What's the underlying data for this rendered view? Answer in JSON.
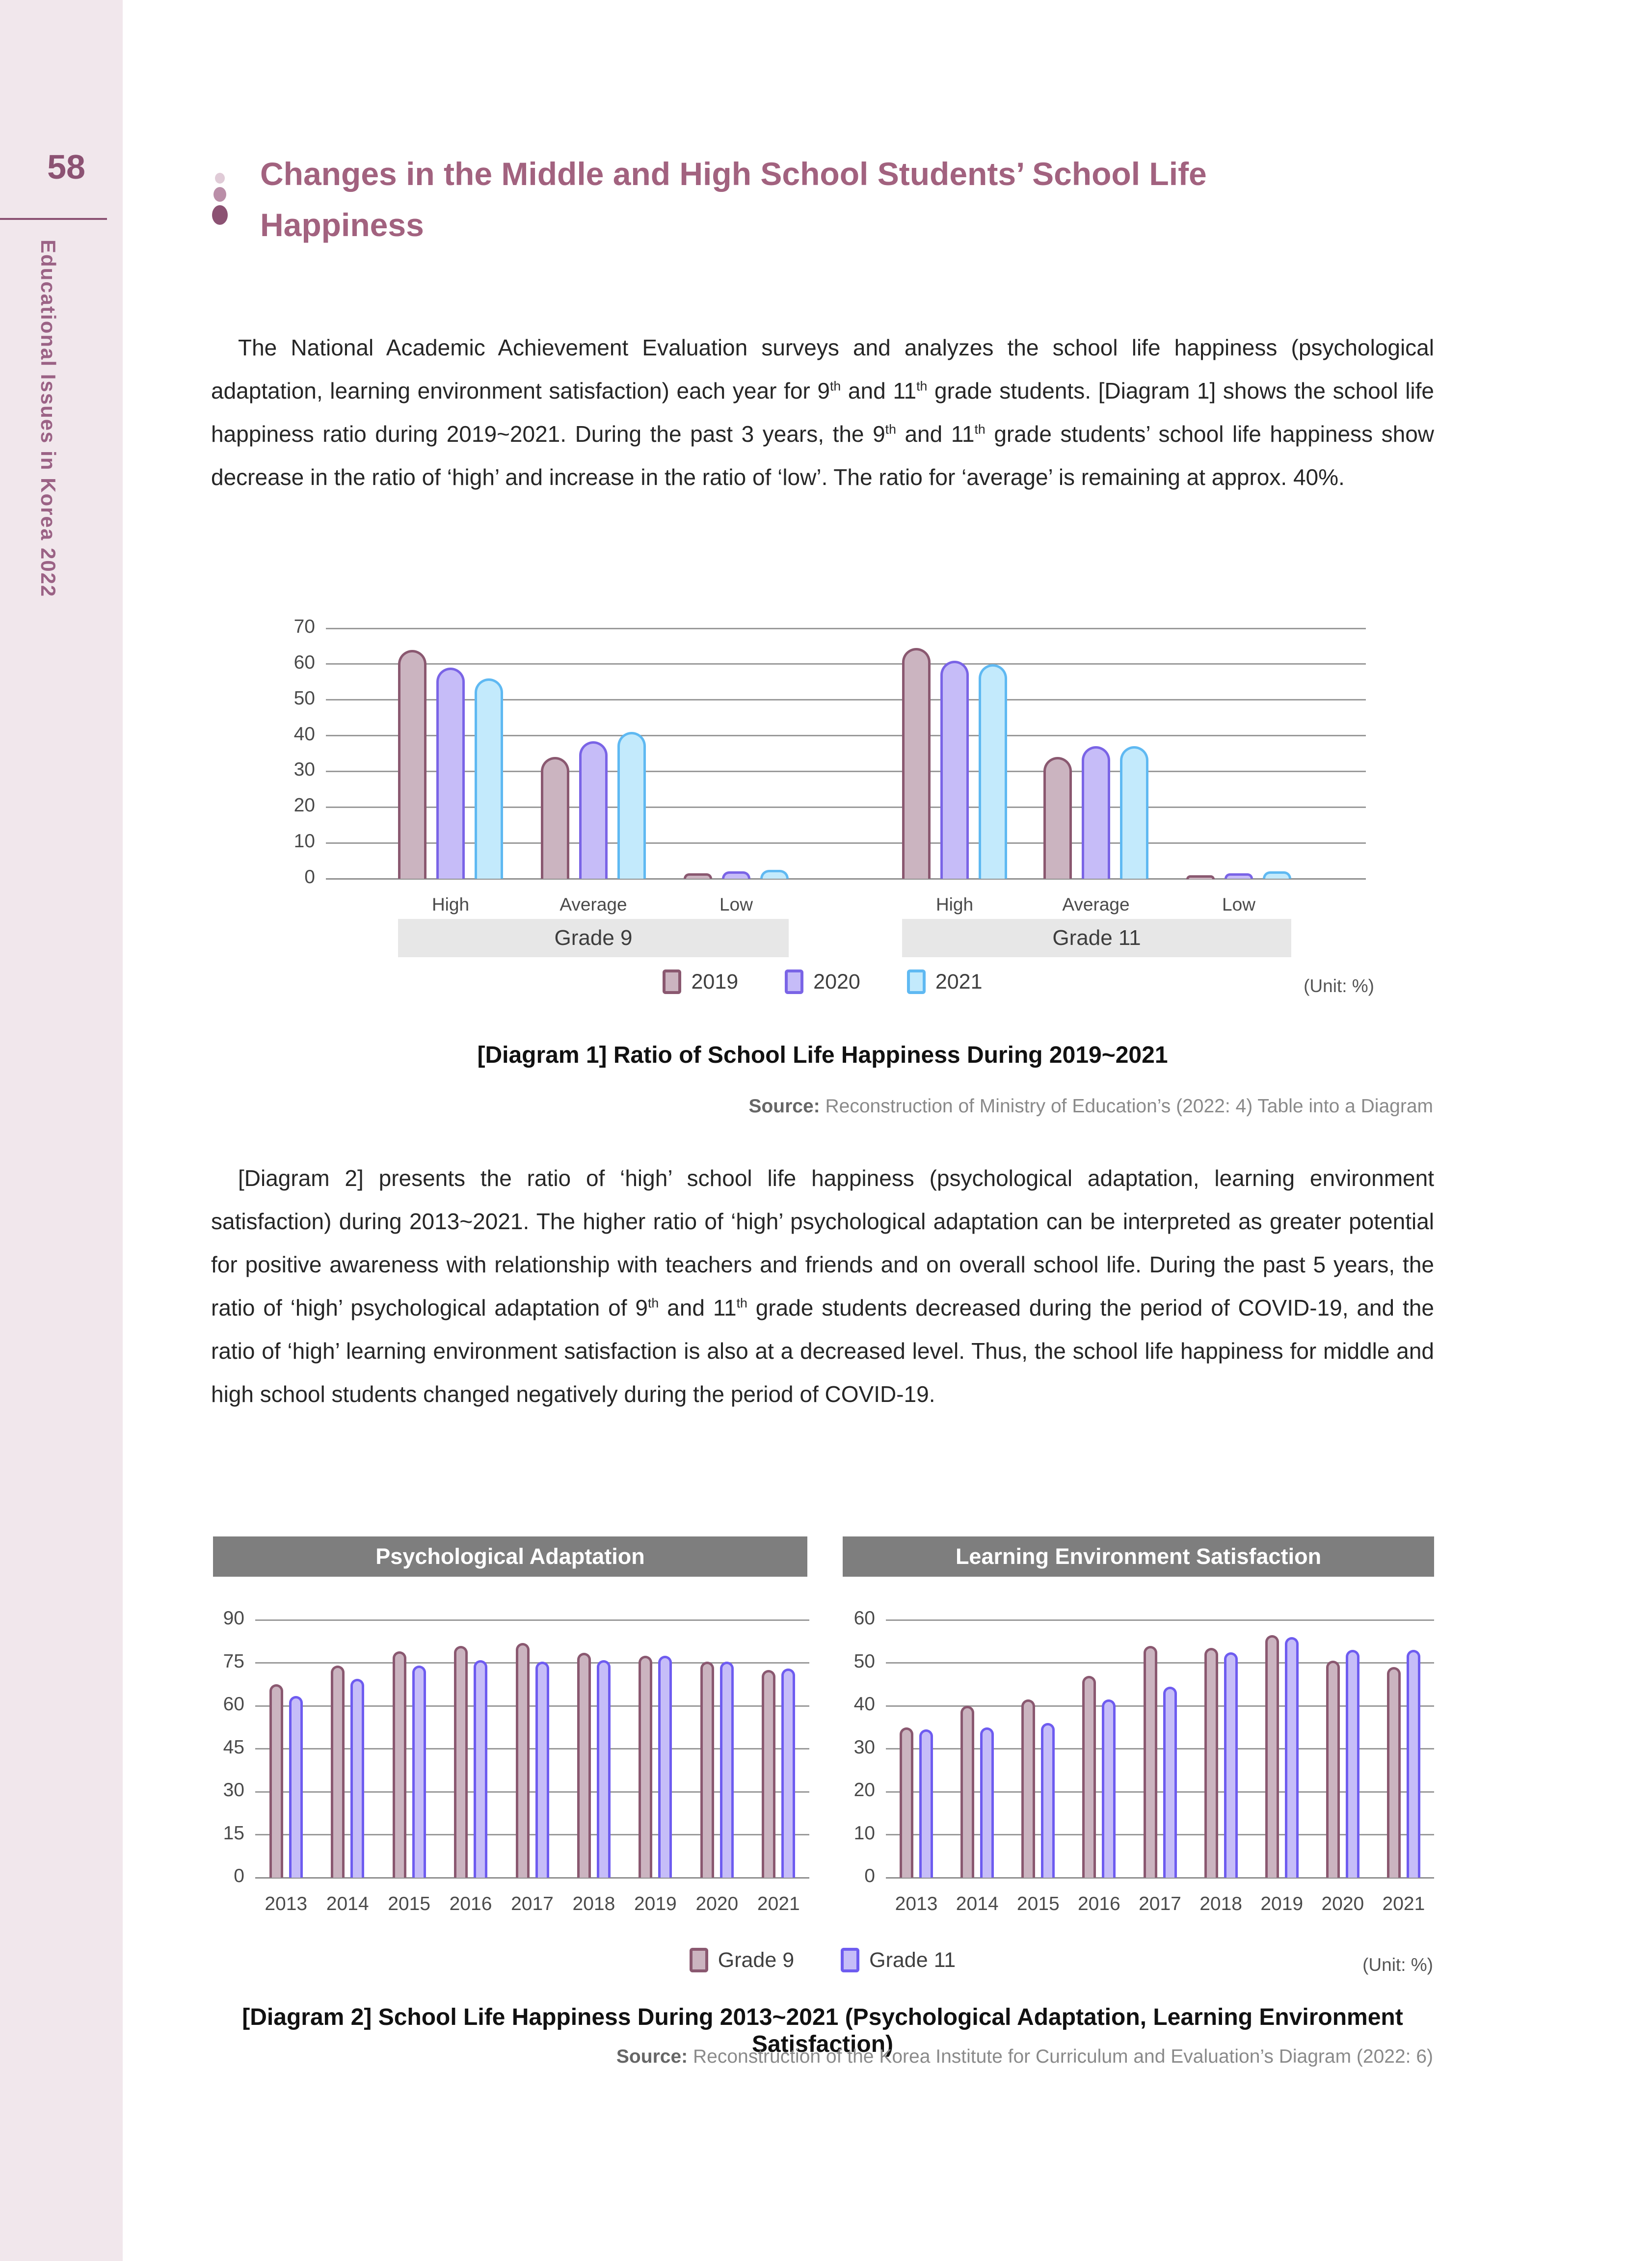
{
  "page": {
    "number": "58",
    "sidebar_title": "Educational Issues in Korea 2022"
  },
  "title": {
    "line1": "Changes in the Middle and High School Students’ School Life",
    "line2": "Happiness"
  },
  "paragraphs": {
    "p1": [
      {
        "t": "The National Academic Achievement Evaluation surveys and analyzes the school life happiness (psychological adaptation, learning environment satisfaction) each year for 9"
      },
      {
        "t": "th",
        "sup": true
      },
      {
        "t": " and 11"
      },
      {
        "t": "th",
        "sup": true
      },
      {
        "t": " grade students. [Diagram 1] shows the school life happiness ratio during 2019~2021. During the past 3 years, the 9"
      },
      {
        "t": "th",
        "sup": true
      },
      {
        "t": " and 11"
      },
      {
        "t": "th",
        "sup": true
      },
      {
        "t": " grade students’ school life happiness show decrease in the ratio of ‘high’ and increase in the ratio of ‘low’. The ratio for ‘average’ is remaining at approx. 40%."
      }
    ],
    "p2": [
      {
        "t": "[Diagram 2] presents the ratio of ‘high’ school life happiness (psychological adaptation, learning environment satisfaction) during 2013~2021. The higher ratio of ‘high’ psychological adaptation can be interpreted as greater potential for positive awareness with relationship with teachers and friends and on overall school life. During the past 5 years, the ratio of ‘high’ psychological adaptation of 9"
      },
      {
        "t": "th",
        "sup": true
      },
      {
        "t": " and 11"
      },
      {
        "t": "th",
        "sup": true
      },
      {
        "t": " grade students decreased during the period of COVID-19, and the ratio of ‘high’ learning environment satisfaction is also at a decreased level. Thus, the school life happiness for middle and high school students changed negatively during the period of COVID-19."
      }
    ]
  },
  "diagram1": {
    "caption": "[Diagram 1] Ratio of School Life Happiness During 2019~2021",
    "source_label": "Source:",
    "source_text": " Reconstruction of Ministry of Education’s (2022: 4) Table into a Diagram",
    "unit": "(Unit: %)"
  },
  "diagram2": {
    "caption": "[Diagram 2] School Life Happiness During 2013~2021 (Psychological Adaptation, Learning Environment Satisfaction)",
    "source_label": "Source:",
    "source_text": " Reconstruction of the Korea Institute for Curriculum and Evaluation’s Diagram (2022: 6)",
    "unit": "(Unit: %)",
    "panels": [
      "Psychological Adaptation",
      "Learning Environment Satisfaction"
    ]
  },
  "chart_data": [
    {
      "id": "diagram1",
      "type": "bar",
      "title": "[Diagram 1] Ratio of School Life Happiness During 2019~2021",
      "unit": "%",
      "ylim": [
        0,
        70
      ],
      "yticks": [
        70,
        60,
        50,
        40,
        30,
        20,
        10,
        0
      ],
      "grid": true,
      "legend_position": "bottom-center",
      "groups": [
        {
          "label": "Grade 9",
          "categories": [
            "High",
            "Average",
            "Low"
          ]
        },
        {
          "label": "Grade 11",
          "categories": [
            "High",
            "Average",
            "Low"
          ]
        }
      ],
      "series": [
        {
          "name": "2019",
          "fill": "#cbb4c0",
          "border": "#8a5870",
          "values": [
            [
              64,
              34,
              1.5
            ],
            [
              64.5,
              34,
              1
            ]
          ]
        },
        {
          "name": "2020",
          "fill": "#c6bcf8",
          "border": "#7a64e6",
          "values": [
            [
              59,
              38.5,
              2
            ],
            [
              61,
              37,
              1.5
            ]
          ]
        },
        {
          "name": "2021",
          "fill": "#c3eafc",
          "border": "#5fb9f2",
          "values": [
            [
              56,
              41,
              2.5
            ],
            [
              60,
              37,
              2
            ]
          ]
        }
      ]
    },
    {
      "id": "diagram2-psychological-adaptation",
      "type": "bar",
      "title": "Psychological Adaptation",
      "unit": "%",
      "ylim": [
        0,
        90
      ],
      "yticks": [
        90,
        75,
        60,
        45,
        30,
        15,
        0
      ],
      "grid": true,
      "categories": [
        "2013",
        "2014",
        "2015",
        "2016",
        "2017",
        "2018",
        "2019",
        "2020",
        "2021"
      ],
      "series": [
        {
          "name": "Grade 9",
          "fill": "#cbb4c0",
          "border": "#8a5870",
          "values": [
            67.5,
            74,
            79,
            81,
            82,
            78.5,
            77.5,
            75.5,
            72.5
          ]
        },
        {
          "name": "Grade 11",
          "fill": "#c6bdf8",
          "border": "#6e5cf0",
          "values": [
            63.5,
            69.5,
            74,
            76,
            75.5,
            76,
            77.5,
            75.5,
            73
          ]
        }
      ]
    },
    {
      "id": "diagram2-learning-environment-satisfaction",
      "type": "bar",
      "title": "Learning Environment Satisfaction",
      "unit": "%",
      "ylim": [
        0,
        60
      ],
      "yticks": [
        60,
        50,
        40,
        30,
        20,
        10,
        0
      ],
      "grid": true,
      "categories": [
        "2013",
        "2014",
        "2015",
        "2016",
        "2017",
        "2018",
        "2019",
        "2020",
        "2021"
      ],
      "series": [
        {
          "name": "Grade 9",
          "fill": "#cbb4c0",
          "border": "#8a5870",
          "values": [
            35,
            40,
            41.5,
            47,
            54,
            53.5,
            56.5,
            50.5,
            49
          ]
        },
        {
          "name": "Grade 11",
          "fill": "#c6bdf8",
          "border": "#6e5cf0",
          "values": [
            34.5,
            35,
            36,
            41.5,
            44.5,
            52.5,
            56,
            53,
            53
          ]
        }
      ]
    }
  ]
}
